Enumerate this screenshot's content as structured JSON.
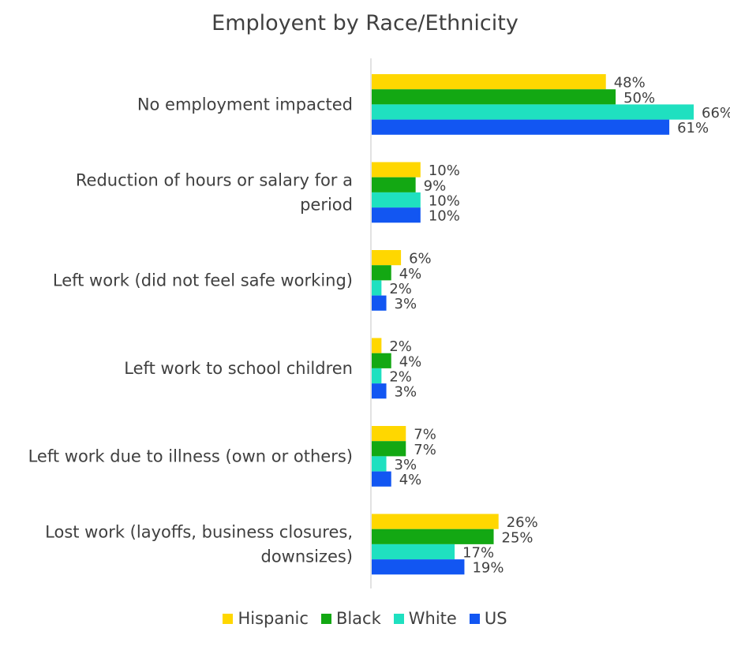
{
  "chart_data": {
    "type": "bar",
    "orientation": "horizontal",
    "title": "Employent by Race/Ethnicity",
    "categories": [
      "No employment impacted",
      "Reduction of hours or salary for a period",
      "Left work (did not feel safe working)",
      "Left work to school children",
      "Left work due to illness (own or others)",
      "Lost work (layoffs, business closures, downsizes)"
    ],
    "series": [
      {
        "name": "Hispanic",
        "color": "#FFD700",
        "values": [
          48,
          10,
          6,
          2,
          7,
          26
        ]
      },
      {
        "name": "Black",
        "color": "#13A813",
        "values": [
          50,
          9,
          4,
          4,
          7,
          25
        ]
      },
      {
        "name": "White",
        "color": "#1FE0C0",
        "values": [
          66,
          10,
          2,
          2,
          3,
          17
        ]
      },
      {
        "name": "US",
        "color": "#1256F2",
        "values": [
          61,
          10,
          3,
          3,
          4,
          19
        ]
      }
    ],
    "value_suffix": "%",
    "xlim": [
      0,
      66
    ],
    "grid": false,
    "legend_position": "bottom"
  }
}
